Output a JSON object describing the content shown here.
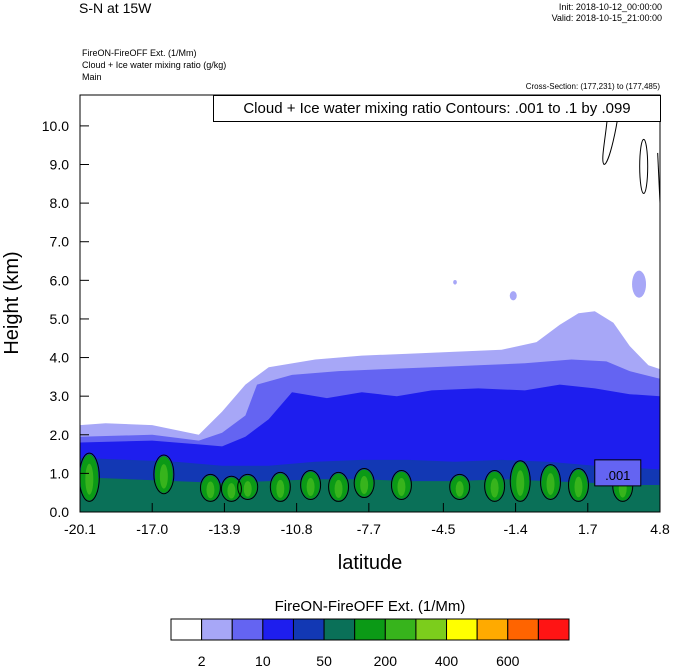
{
  "header": {
    "title": "S-N at 15W",
    "init": "Init: 2018-10-12_00:00:00",
    "valid": "Valid: 2018-10-15_21:00:00",
    "field1": "FireON-FireOFF Ext.   (1/Mm)",
    "field2": "Cloud + Ice water mixing ratio   (g/kg)",
    "field3": "Main",
    "cross_section": "Cross-Section: (177,231) to (177,485)"
  },
  "chart_data": {
    "type": "contour",
    "title": "Cloud + Ice water mixing ratio Contours: .001 to .1 by .099",
    "xlabel": "latitude",
    "ylabel": "Height (km)",
    "xlim": [
      -20.1,
      4.8
    ],
    "ylim": [
      0.0,
      10.8
    ],
    "x_ticks": [
      "-20.1",
      "-17.0",
      "-13.9",
      "-10.8",
      "-7.7",
      "-4.5",
      "-1.4",
      "1.7",
      "4.8"
    ],
    "x_tick_values": [
      -20.1,
      -17.0,
      -13.9,
      -10.8,
      -7.7,
      -4.5,
      -1.4,
      1.7,
      4.8
    ],
    "y_ticks": [
      "0.0",
      "1.0",
      "2.0",
      "3.0",
      "4.0",
      "5.0",
      "6.0",
      "7.0",
      "8.0",
      "9.0",
      "10.0"
    ],
    "y_tick_values": [
      0,
      1,
      2,
      3,
      4,
      5,
      6,
      7,
      8,
      9,
      10
    ],
    "contour_label": ".001",
    "colorbar": {
      "title": "FireON-FireOFF Ext.  (1/Mm)",
      "colors": [
        "#ffffff",
        "#a7a7f7",
        "#6464f2",
        "#1e1eee",
        "#1238b4",
        "#0a7058",
        "#0b9a16",
        "#37b41c",
        "#7ccd1c",
        "#ffff00",
        "#ffaa00",
        "#ff6400",
        "#ff1414"
      ],
      "tick_labels": [
        "2",
        "10",
        "50",
        "200",
        "400",
        "600"
      ]
    },
    "layers": [
      {
        "color": "#a7a7f7",
        "top": [
          [
            -20.1,
            2.25
          ],
          [
            -19.0,
            2.3
          ],
          [
            -17.0,
            2.25
          ],
          [
            -15.0,
            2.0
          ],
          [
            -14.0,
            2.6
          ],
          [
            -13.0,
            3.3
          ],
          [
            -12.0,
            3.75
          ],
          [
            -10.0,
            3.95
          ],
          [
            -8.0,
            4.05
          ],
          [
            -6.0,
            4.1
          ],
          [
            -4.0,
            4.15
          ],
          [
            -2.0,
            4.2
          ],
          [
            -0.5,
            4.4
          ],
          [
            0.5,
            4.85
          ],
          [
            1.3,
            5.15
          ],
          [
            2.0,
            5.2
          ],
          [
            2.8,
            4.9
          ],
          [
            3.5,
            4.3
          ],
          [
            4.3,
            3.8
          ],
          [
            4.8,
            3.7
          ]
        ]
      },
      {
        "color": "#6464f2",
        "top": [
          [
            -20.1,
            1.95
          ],
          [
            -17.0,
            2.0
          ],
          [
            -15.0,
            1.85
          ],
          [
            -14.0,
            2.05
          ],
          [
            -13.0,
            2.5
          ],
          [
            -12.5,
            3.3
          ],
          [
            -11.0,
            3.55
          ],
          [
            -9.0,
            3.65
          ],
          [
            -7.0,
            3.7
          ],
          [
            -5.0,
            3.75
          ],
          [
            -3.0,
            3.8
          ],
          [
            -1.0,
            3.85
          ],
          [
            1.0,
            3.95
          ],
          [
            2.5,
            3.9
          ],
          [
            3.5,
            3.65
          ],
          [
            4.8,
            3.45
          ]
        ]
      },
      {
        "color": "#1e1eee",
        "top": [
          [
            -20.1,
            1.8
          ],
          [
            -17.0,
            1.85
          ],
          [
            -15.0,
            1.75
          ],
          [
            -14.0,
            1.7
          ],
          [
            -13.0,
            1.95
          ],
          [
            -12.0,
            2.4
          ],
          [
            -11.0,
            3.1
          ],
          [
            -9.5,
            2.95
          ],
          [
            -8.0,
            3.1
          ],
          [
            -6.5,
            3.0
          ],
          [
            -5.0,
            3.15
          ],
          [
            -3.0,
            3.2
          ],
          [
            -1.0,
            3.15
          ],
          [
            0.5,
            3.3
          ],
          [
            2.0,
            3.2
          ],
          [
            3.5,
            3.05
          ],
          [
            4.8,
            3.0
          ]
        ]
      },
      {
        "color": "#1238b4",
        "top": [
          [
            -20.1,
            1.4
          ],
          [
            -18.0,
            1.35
          ],
          [
            -16.0,
            1.3
          ],
          [
            -14.0,
            1.2
          ],
          [
            -12.0,
            1.2
          ],
          [
            -10.0,
            1.3
          ],
          [
            -8.0,
            1.35
          ],
          [
            -6.0,
            1.35
          ],
          [
            -4.0,
            1.3
          ],
          [
            -2.0,
            1.35
          ],
          [
            0.0,
            1.3
          ],
          [
            2.0,
            1.2
          ],
          [
            3.5,
            1.15
          ],
          [
            4.8,
            1.1
          ]
        ]
      },
      {
        "color": "#0a7058",
        "top": [
          [
            -20.1,
            0.9
          ],
          [
            -18.0,
            0.85
          ],
          [
            -16.0,
            0.8
          ],
          [
            -14.0,
            0.75
          ],
          [
            -12.0,
            0.8
          ],
          [
            -10.0,
            0.85
          ],
          [
            -8.0,
            0.85
          ],
          [
            -6.0,
            0.8
          ],
          [
            -4.0,
            0.8
          ],
          [
            -2.0,
            0.85
          ],
          [
            0.0,
            0.8
          ],
          [
            2.0,
            0.75
          ],
          [
            4.0,
            0.7
          ],
          [
            4.8,
            0.7
          ]
        ]
      }
    ],
    "green_cells": [
      {
        "x": -19.7,
        "y0": 0.3,
        "y1": 1.5
      },
      {
        "x": -16.5,
        "y0": 0.5,
        "y1": 1.45
      },
      {
        "x": -14.5,
        "y0": 0.3,
        "y1": 0.95
      },
      {
        "x": -13.6,
        "y0": 0.3,
        "y1": 0.9
      },
      {
        "x": -12.9,
        "y0": 0.35,
        "y1": 0.95
      },
      {
        "x": -11.5,
        "y0": 0.3,
        "y1": 1.0
      },
      {
        "x": -10.2,
        "y0": 0.35,
        "y1": 1.05
      },
      {
        "x": -9.0,
        "y0": 0.3,
        "y1": 1.0
      },
      {
        "x": -7.9,
        "y0": 0.4,
        "y1": 1.1
      },
      {
        "x": -6.3,
        "y0": 0.35,
        "y1": 1.05
      },
      {
        "x": -3.8,
        "y0": 0.35,
        "y1": 0.95
      },
      {
        "x": -2.3,
        "y0": 0.3,
        "y1": 1.05
      },
      {
        "x": -1.2,
        "y0": 0.3,
        "y1": 1.3
      },
      {
        "x": 0.1,
        "y0": 0.35,
        "y1": 1.2
      },
      {
        "x": 1.3,
        "y0": 0.3,
        "y1": 1.1
      },
      {
        "x": 3.2,
        "y0": 0.3,
        "y1": 1.05
      }
    ],
    "light_patches": [
      {
        "x": 3.9,
        "y": 5.9,
        "rx": 0.3,
        "ry": 0.35
      },
      {
        "x": -4.0,
        "y": 5.95,
        "rx": 0.08,
        "ry": 0.06
      },
      {
        "x": -1.5,
        "y": 5.6,
        "rx": 0.15,
        "ry": 0.12
      }
    ]
  }
}
